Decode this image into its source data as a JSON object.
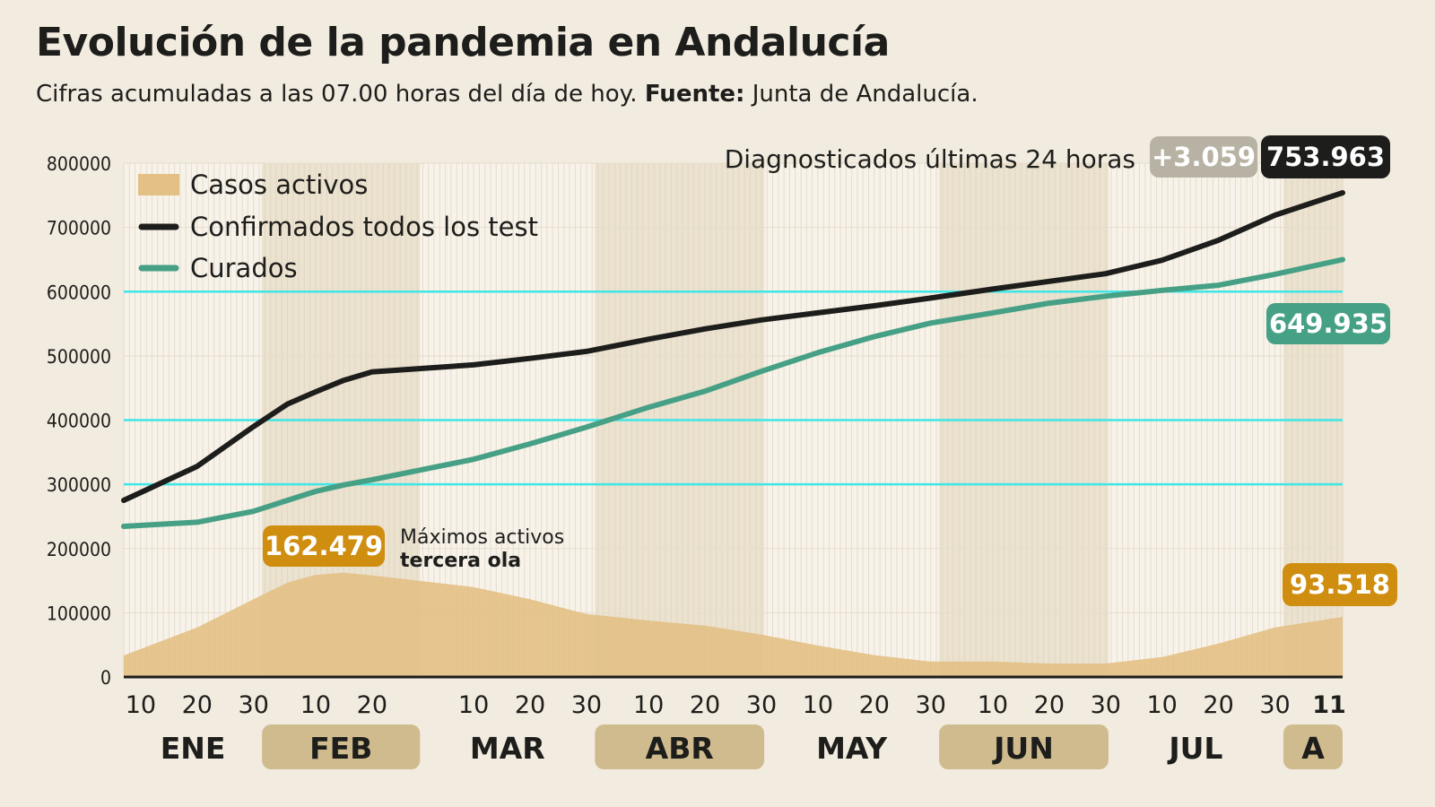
{
  "title": "Evolución de la pandemia en Andalucía",
  "subtitle": {
    "text": "Cifras acumuladas a las 07.00 horas del día de hoy. ",
    "source_label": "Fuente:",
    "source": " Junta de Andalucía."
  },
  "chart_data": {
    "type": "area+line",
    "title": "Evolución de la pandemia en Andalucía",
    "x_format": "MM-DD",
    "xlim": [
      "01-07",
      "08-11"
    ],
    "ylim": [
      0,
      800000
    ],
    "yticks": [
      0,
      100000,
      200000,
      300000,
      400000,
      500000,
      600000,
      700000,
      800000
    ],
    "ytick_labels": [
      "0",
      "100000",
      "200000",
      "300000",
      "400000",
      "500000",
      "600000",
      "700000",
      "800000"
    ],
    "highlight_gridlines": [
      300000,
      400000,
      600000
    ],
    "highlight_grid_color": "#3ee6e6",
    "xticks": [
      {
        "date": "01-10",
        "label": "10"
      },
      {
        "date": "01-20",
        "label": "20"
      },
      {
        "date": "01-30",
        "label": "30"
      },
      {
        "date": "02-10",
        "label": "10"
      },
      {
        "date": "02-20",
        "label": "20"
      },
      {
        "date": "03-10",
        "label": "10"
      },
      {
        "date": "03-20",
        "label": "20"
      },
      {
        "date": "03-30",
        "label": "30"
      },
      {
        "date": "04-10",
        "label": "10"
      },
      {
        "date": "04-20",
        "label": "20"
      },
      {
        "date": "04-30",
        "label": "30"
      },
      {
        "date": "05-10",
        "label": "10"
      },
      {
        "date": "05-20",
        "label": "20"
      },
      {
        "date": "05-30",
        "label": "30"
      },
      {
        "date": "06-10",
        "label": "10"
      },
      {
        "date": "06-20",
        "label": "20"
      },
      {
        "date": "06-30",
        "label": "30"
      },
      {
        "date": "07-10",
        "label": "10"
      },
      {
        "date": "07-20",
        "label": "20"
      },
      {
        "date": "07-30",
        "label": "30"
      },
      {
        "date": "08-11",
        "label": "11",
        "bold": true
      }
    ],
    "months": [
      {
        "label": "ENE",
        "start": "01-07",
        "end": "01-31",
        "shaded": false
      },
      {
        "label": "FEB",
        "start": "02-01",
        "end": "02-28",
        "shaded": true
      },
      {
        "label": "MAR",
        "start": "03-01",
        "end": "03-31",
        "shaded": false
      },
      {
        "label": "ABR",
        "start": "04-01",
        "end": "04-30",
        "shaded": true
      },
      {
        "label": "MAY",
        "start": "05-01",
        "end": "05-31",
        "shaded": false
      },
      {
        "label": "JUN",
        "start": "06-01",
        "end": "06-30",
        "shaded": true
      },
      {
        "label": "JUL",
        "start": "07-01",
        "end": "07-31",
        "shaded": false
      },
      {
        "label": "A",
        "start": "08-01",
        "end": "08-11",
        "shaded": true
      }
    ],
    "x": [
      "01-07",
      "01-20",
      "01-30",
      "02-05",
      "02-10",
      "02-15",
      "02-20",
      "03-10",
      "03-20",
      "03-30",
      "04-10",
      "04-20",
      "04-30",
      "05-10",
      "05-20",
      "05-30",
      "06-10",
      "06-20",
      "06-30",
      "07-10",
      "07-20",
      "07-30",
      "08-11"
    ],
    "series": [
      {
        "name": "Casos activos",
        "kind": "area",
        "color": "#e3c085",
        "values": [
          33500,
          77000,
          121000,
          147000,
          159000,
          162479,
          158000,
          140000,
          121000,
          98000,
          88000,
          80000,
          66000,
          49000,
          34000,
          24000,
          24000,
          21000,
          21000,
          31000,
          52000,
          77000,
          93518
        ]
      },
      {
        "name": "Confirmados todos los test",
        "kind": "line",
        "color": "#1d1d1b",
        "values": [
          275000,
          328000,
          390000,
          425000,
          444000,
          462000,
          475000,
          486000,
          496000,
          507000,
          526000,
          542000,
          556000,
          567000,
          578000,
          590000,
          604000,
          616000,
          628000,
          649000,
          680000,
          719000,
          753963
        ]
      },
      {
        "name": "Curados",
        "kind": "line",
        "color": "#46a085",
        "values": [
          234500,
          241000,
          258000,
          275000,
          289000,
          299000,
          307000,
          339000,
          363000,
          389000,
          420000,
          445000,
          476000,
          505000,
          530000,
          551000,
          567000,
          582000,
          593000,
          602000,
          610000,
          627000,
          649935
        ]
      }
    ],
    "legend_position": "top-left",
    "annotations": {
      "peak_value": "162.479",
      "peak_text_1": "Máximos activos",
      "peak_text_2": "tercera ola",
      "peak_color": "#d08e10",
      "last_active": "93.518",
      "last_cured": "649.935",
      "cured_badge_color": "#46a085",
      "diag_label": "Diagnosticados últimas 24 horas",
      "diag_delta": "+3.059",
      "delta_badge_color": "#b8b2a4",
      "last_confirmed": "753.963",
      "confirmed_badge_color": "#1d1d1b"
    }
  }
}
